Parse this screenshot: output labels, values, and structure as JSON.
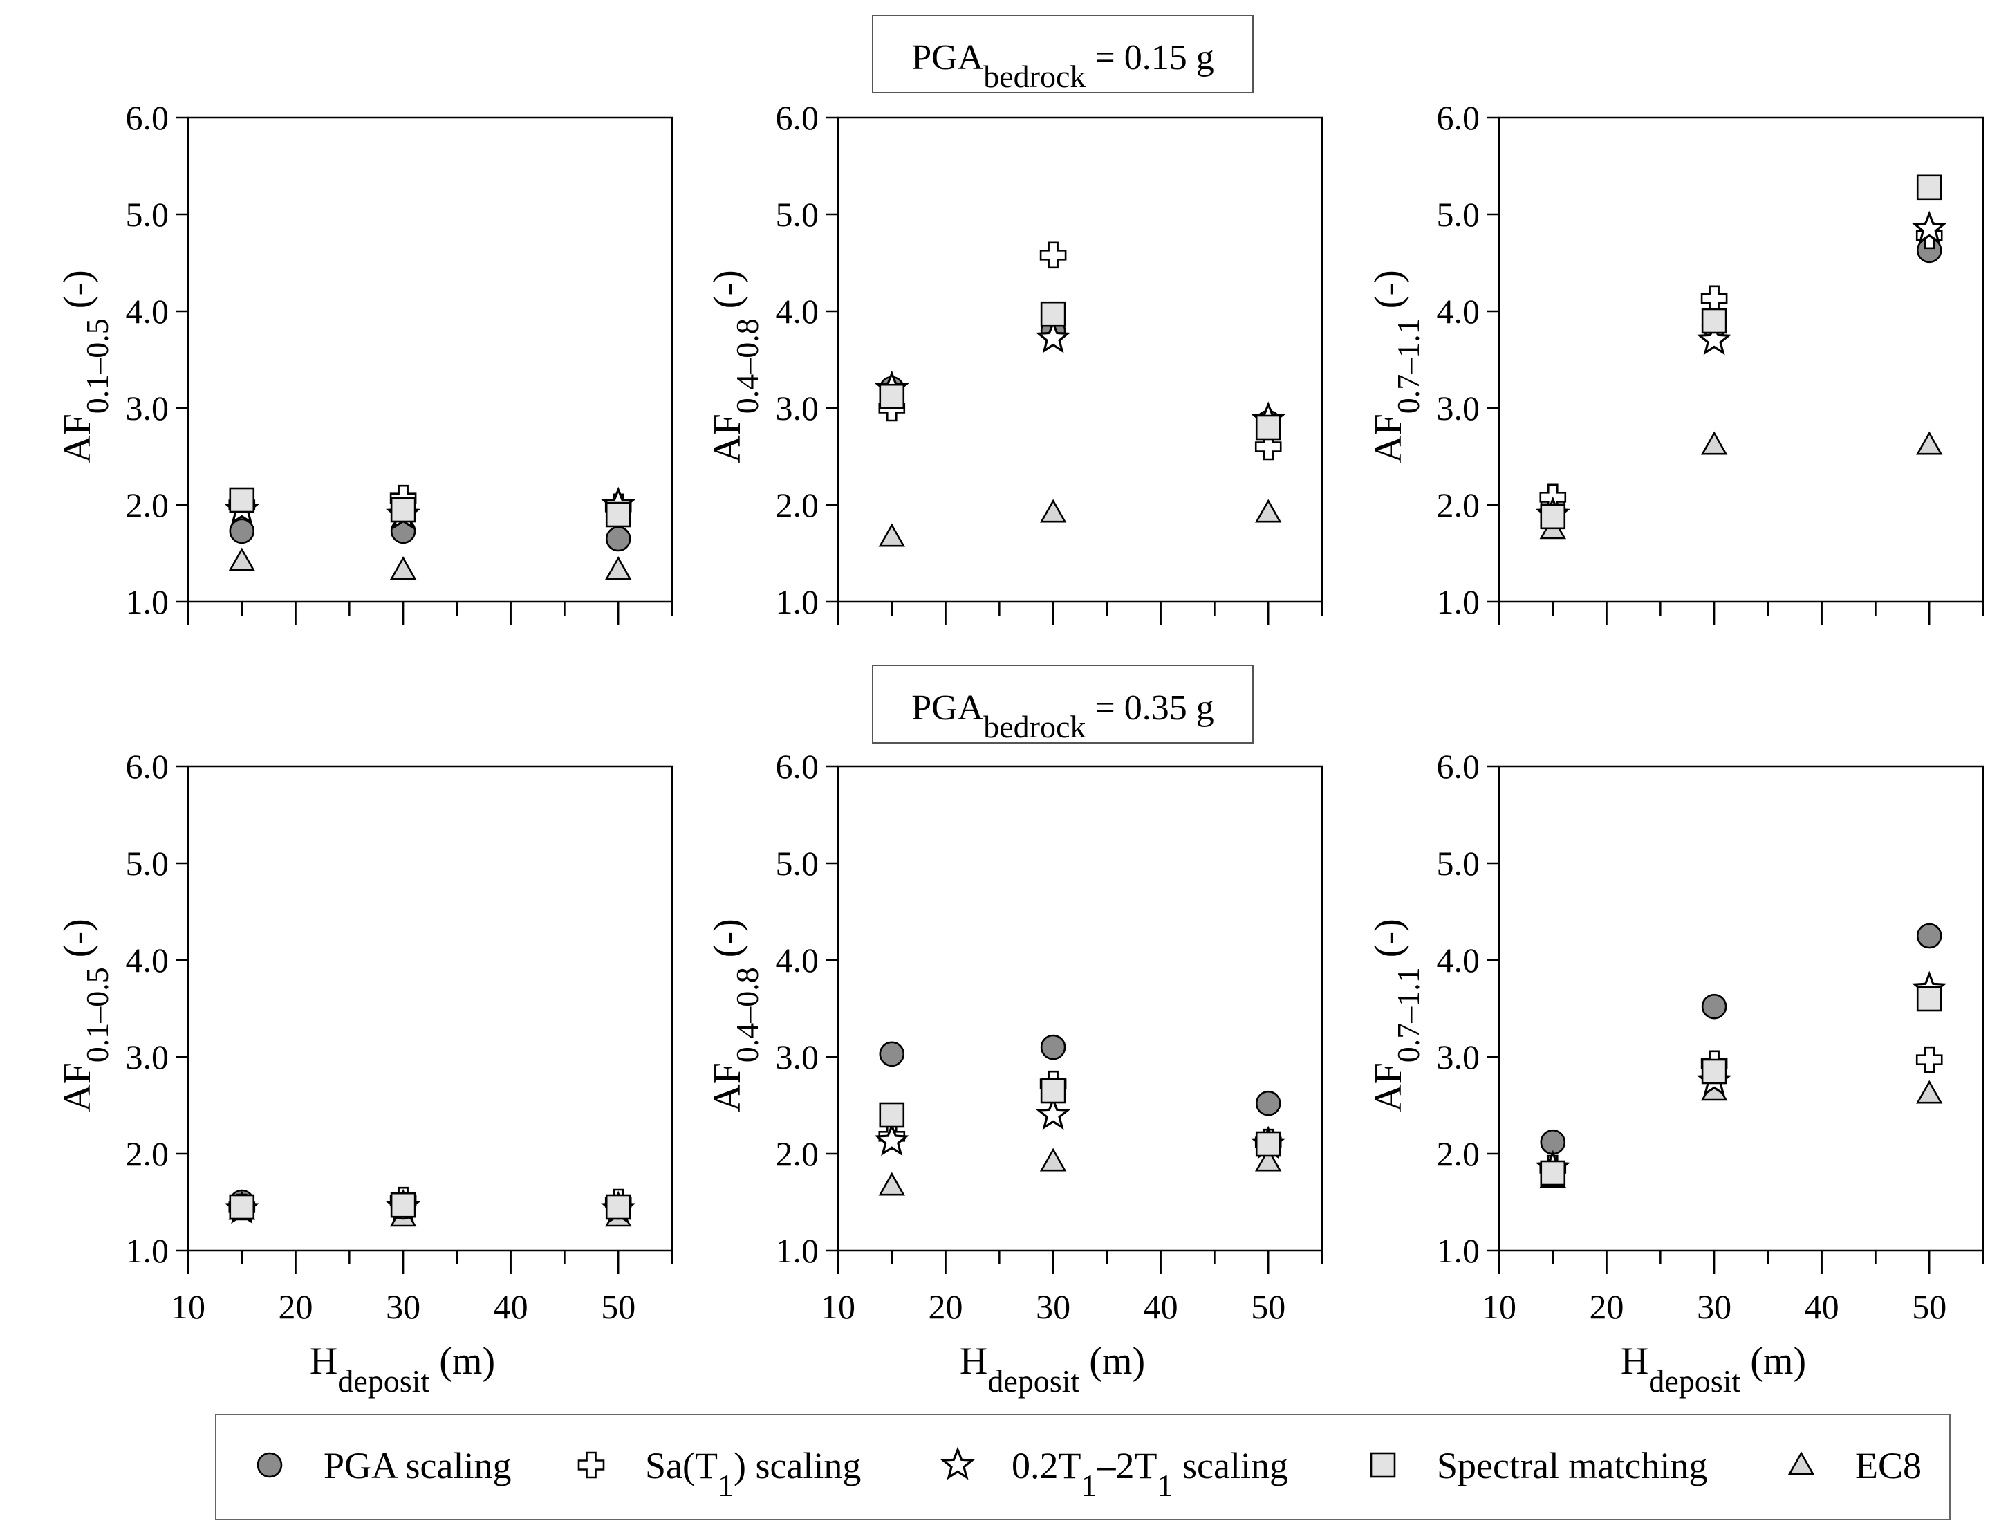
{
  "chart_data": {
    "type": "scatter",
    "x_label": {
      "main": "H",
      "sub": "deposit",
      "suffix": " (m)"
    },
    "x_ticks": [
      10,
      20,
      30,
      40,
      50
    ],
    "x_range": [
      10,
      55
    ],
    "y_ticks": [
      "1.0",
      "2.0",
      "3.0",
      "4.0",
      "5.0",
      "6.0"
    ],
    "y_range": [
      1.0,
      6.0
    ],
    "categories": [
      15,
      30,
      50
    ],
    "rows": [
      {
        "title": {
          "main": "PGA",
          "sub": "bedrock",
          "suffix": " = 0.15 g"
        },
        "panels": [
          {
            "ylabel": {
              "main": "AF",
              "sub": "0.1–0.5",
              "suffix": " (-)"
            },
            "series": [
              {
                "name": "PGA scaling",
                "values": [
                  1.73,
                  1.73,
                  1.65
                ]
              },
              {
                "name": "Sa(T1) scaling",
                "values": [
                  2.0,
                  2.07,
                  1.98
                ]
              },
              {
                "name": "0.2T1-2T1 scaling",
                "values": [
                  1.95,
                  1.9,
                  2.0
                ]
              },
              {
                "name": "Spectral matching",
                "values": [
                  2.05,
                  1.95,
                  1.9
                ]
              },
              {
                "name": "EC8",
                "values": [
                  1.42,
                  1.33,
                  1.33
                ]
              }
            ]
          },
          {
            "ylabel": {
              "main": "AF",
              "sub": "0.4–0.8",
              "suffix": " (-)"
            },
            "series": [
              {
                "name": "PGA scaling",
                "values": [
                  3.2,
                  3.8,
                  2.85
                ]
              },
              {
                "name": "Sa(T1) scaling",
                "values": [
                  3.0,
                  4.58,
                  2.6
                ]
              },
              {
                "name": "0.2T1-2T1 scaling",
                "values": [
                  3.2,
                  3.72,
                  2.88
                ]
              },
              {
                "name": "Spectral matching",
                "values": [
                  3.12,
                  3.97,
                  2.8
                ]
              },
              {
                "name": "EC8",
                "values": [
                  1.67,
                  1.92,
                  1.92
                ]
              }
            ]
          },
          {
            "ylabel": {
              "main": "AF",
              "sub": "0.7–1.1",
              "suffix": " (-)"
            },
            "series": [
              {
                "name": "PGA scaling",
                "values": [
                  2.0,
                  3.85,
                  4.63
                ]
              },
              {
                "name": "Sa(T1) scaling",
                "values": [
                  2.08,
                  4.13,
                  4.78
                ]
              },
              {
                "name": "0.2T1-2T1 scaling",
                "values": [
                  1.9,
                  3.7,
                  4.85
                ]
              },
              {
                "name": "Spectral matching",
                "values": [
                  1.88,
                  3.9,
                  5.28
                ]
              },
              {
                "name": "EC8",
                "values": [
                  1.75,
                  2.62,
                  2.62
                ]
              }
            ]
          }
        ]
      },
      {
        "title": {
          "main": "PGA",
          "sub": "bedrock",
          "suffix": " = 0.35 g"
        },
        "panels": [
          {
            "ylabel": {
              "main": "AF",
              "sub": "0.1–0.5",
              "suffix": " (-)"
            },
            "series": [
              {
                "name": "PGA scaling",
                "values": [
                  1.5,
                  1.45,
                  1.45
                ]
              },
              {
                "name": "Sa(T1) scaling",
                "values": [
                  1.45,
                  1.52,
                  1.5
                ]
              },
              {
                "name": "0.2T1-2T1 scaling",
                "values": [
                  1.43,
                  1.45,
                  1.43
                ]
              },
              {
                "name": "Spectral matching",
                "values": [
                  1.45,
                  1.47,
                  1.45
                ]
              },
              {
                "name": "EC8",
                "values": [
                  1.42,
                  1.35,
                  1.35
                ]
              }
            ]
          },
          {
            "ylabel": {
              "main": "AF",
              "sub": "0.4–0.8",
              "suffix": " (-)"
            },
            "series": [
              {
                "name": "PGA scaling",
                "values": [
                  3.03,
                  3.1,
                  2.52
                ]
              },
              {
                "name": "Sa(T1) scaling",
                "values": [
                  2.18,
                  2.72,
                  2.12
                ]
              },
              {
                "name": "0.2T1-2T1 scaling",
                "values": [
                  2.13,
                  2.4,
                  2.1
                ]
              },
              {
                "name": "Spectral matching",
                "values": [
                  2.4,
                  2.65,
                  2.1
                ]
              },
              {
                "name": "EC8",
                "values": [
                  1.67,
                  1.92,
                  1.92
                ]
              }
            ]
          },
          {
            "ylabel": {
              "main": "AF",
              "sub": "0.7–1.1",
              "suffix": " (-)"
            },
            "series": [
              {
                "name": "PGA scaling",
                "values": [
                  2.12,
                  3.52,
                  4.25
                ]
              },
              {
                "name": "Sa(T1) scaling",
                "values": [
                  1.85,
                  2.93,
                  2.97
                ]
              },
              {
                "name": "0.2T1-2T1 scaling",
                "values": [
                  1.85,
                  2.75,
                  3.7
                ]
              },
              {
                "name": "Spectral matching",
                "values": [
                  1.8,
                  2.85,
                  3.6
                ]
              },
              {
                "name": "EC8",
                "values": [
                  1.75,
                  2.65,
                  2.62
                ]
              }
            ]
          }
        ]
      }
    ],
    "legend": [
      {
        "key": "PGA scaling",
        "marker": "circle",
        "label": "PGA scaling"
      },
      {
        "key": "Sa(T1) scaling",
        "marker": "cross",
        "label": {
          "main": "Sa(T",
          "sub": "1",
          "suffix": ") scaling"
        }
      },
      {
        "key": "0.2T1-2T1 scaling",
        "marker": "star",
        "label": {
          "main": "0.2T",
          "sub": "1",
          "mid": "–2T",
          "sub2": "1",
          "suffix": " scaling"
        }
      },
      {
        "key": "Spectral matching",
        "marker": "square",
        "label": "Spectral matching"
      },
      {
        "key": "EC8",
        "marker": "triangle",
        "label": "EC8"
      }
    ],
    "legend_position": "bottom-center",
    "colors": {
      "circle": "#8c8c8c",
      "square": "#e3e3e3",
      "cross": "#ffffff",
      "star": "#ffffff",
      "triangle": "#d6d6d6",
      "stroke": "#000000"
    }
  }
}
